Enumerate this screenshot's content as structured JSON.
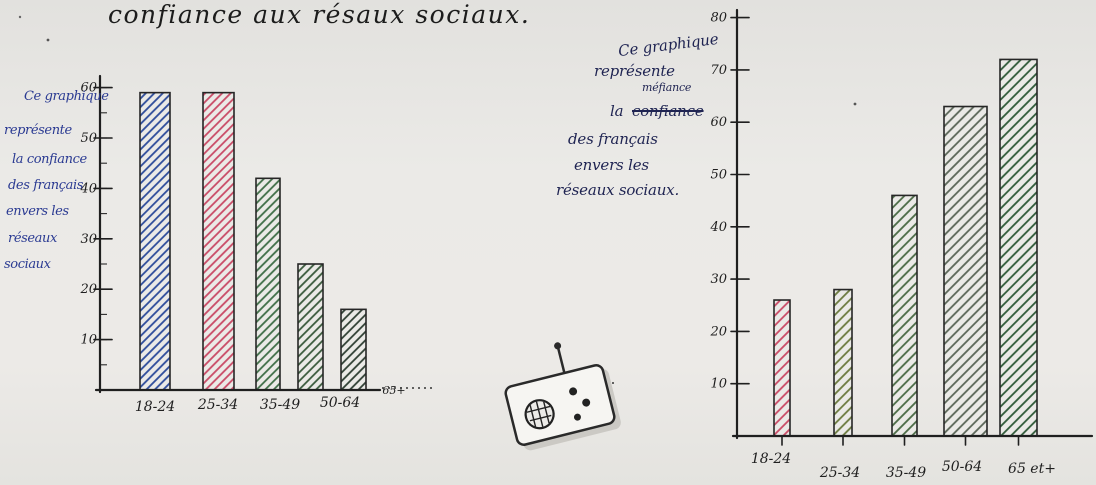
{
  "colors": {
    "paper": "#ebeae7",
    "ink": "#222222",
    "note_blue": "#2a3a92",
    "note_dark": "#1f2452"
  },
  "icons": {
    "radio": "radio-icon"
  },
  "annotations": {
    "left": {
      "lines": [
        "Ce graphique",
        "représente",
        "la confiance",
        "des français",
        "envers les",
        "réseaux",
        "sociaux"
      ]
    },
    "right": {
      "line1": "Ce graphique",
      "line2": "représente",
      "correction": "méfiance",
      "line3_prefix": "la",
      "struck": "confiance",
      "line4": "des français",
      "line5": "envers les",
      "line6": "réseaux sociaux."
    }
  },
  "chart_data": [
    {
      "type": "bar",
      "title": "confiance aux résaux sociaux.",
      "categories": [
        "18-24",
        "25-34",
        "35-49",
        "50-64",
        "65+"
      ],
      "values": [
        59,
        59,
        42,
        25,
        16
      ],
      "yticks": [
        10,
        20,
        30,
        40,
        50,
        60
      ],
      "ylim": [
        0,
        60
      ],
      "grid": false,
      "bar_colors": [
        "#2d4b9a",
        "#c94a66",
        "#3f6e47",
        "#3a5a3c",
        "#2f3f33"
      ]
    },
    {
      "type": "bar",
      "categories": [
        "18-24",
        "25-34",
        "35-49",
        "50-64",
        "65 et+"
      ],
      "values": [
        26,
        28,
        46,
        63,
        72
      ],
      "yticks": [
        10,
        20,
        30,
        40,
        50,
        60,
        70,
        80
      ],
      "ylim": [
        0,
        80
      ],
      "grid": false,
      "bar_colors": [
        "#c94a66",
        "#6b7a3e",
        "#4a6a45",
        "#5b6658",
        "#2f5a38"
      ]
    }
  ]
}
